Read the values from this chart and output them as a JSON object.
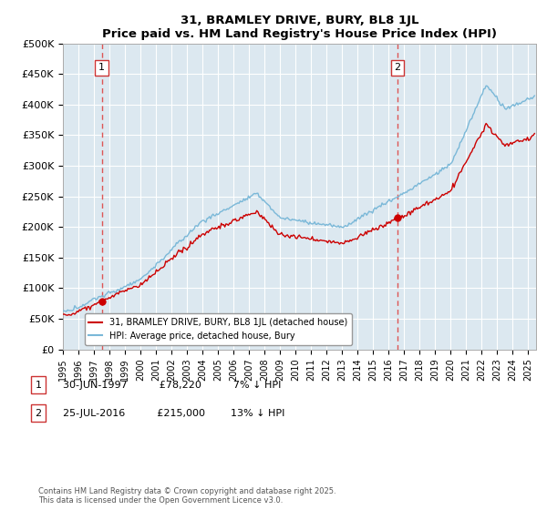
{
  "title": "31, BRAMLEY DRIVE, BURY, BL8 1JL",
  "subtitle": "Price paid vs. HM Land Registry's House Price Index (HPI)",
  "ylabel_ticks": [
    "£0",
    "£50K",
    "£100K",
    "£150K",
    "£200K",
    "£250K",
    "£300K",
    "£350K",
    "£400K",
    "£450K",
    "£500K"
  ],
  "ytick_values": [
    0,
    50000,
    100000,
    150000,
    200000,
    250000,
    300000,
    350000,
    400000,
    450000,
    500000
  ],
  "ylim": [
    0,
    500000
  ],
  "xlim_start": 1995.0,
  "xlim_end": 2025.5,
  "purchase1_date": 1997.5,
  "purchase1_price": 78220,
  "purchase1_label": "1",
  "purchase2_date": 2016.57,
  "purchase2_price": 215000,
  "purchase2_label": "2",
  "hpi_color": "#7ab8d8",
  "price_color": "#cc0000",
  "dashed_line_color": "#dd5555",
  "background_color": "#dce8f0",
  "grid_color": "#ffffff",
  "legend_line1": "31, BRAMLEY DRIVE, BURY, BL8 1JL (detached house)",
  "legend_line2": "HPI: Average price, detached house, Bury",
  "footnote": "Contains HM Land Registry data © Crown copyright and database right 2025.\nThis data is licensed under the Open Government Licence v3.0.",
  "xtick_years": [
    1995,
    1996,
    1997,
    1998,
    1999,
    2000,
    2001,
    2002,
    2003,
    2004,
    2005,
    2006,
    2007,
    2008,
    2009,
    2010,
    2011,
    2012,
    2013,
    2014,
    2015,
    2016,
    2017,
    2018,
    2019,
    2020,
    2021,
    2022,
    2023,
    2024,
    2025
  ],
  "label1_box_text": "1",
  "label2_box_text": "2",
  "ann1_date": "30-JUN-1997",
  "ann1_price": "£78,220",
  "ann1_hpi": "7% ↓ HPI",
  "ann2_date": "25-JUL-2016",
  "ann2_price": "£215,000",
  "ann2_hpi": "13% ↓ HPI"
}
